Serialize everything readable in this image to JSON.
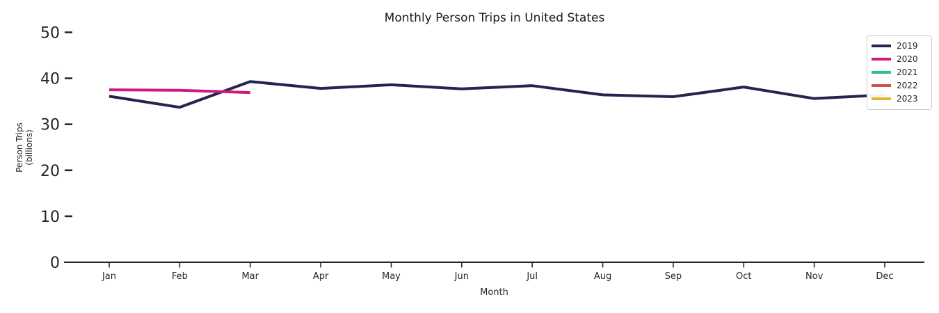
{
  "chart_data": {
    "type": "line",
    "title": "Monthly Person Trips in United States",
    "xlabel": "Month",
    "ylabel_lines": [
      "Person Trips",
      "(billions)"
    ],
    "categories": [
      "Jan",
      "Feb",
      "Mar",
      "Apr",
      "May",
      "Jun",
      "Jul",
      "Aug",
      "Sep",
      "Oct",
      "Nov",
      "Dec"
    ],
    "yticks": [
      0,
      10,
      20,
      30,
      40,
      50
    ],
    "ylim": [
      0,
      52
    ],
    "grid": false,
    "legend_position": "upper right",
    "axis_color": "#262626",
    "series": [
      {
        "name": "2019",
        "color": "#262350",
        "values": [
          36.1,
          33.7,
          39.3,
          37.8,
          38.6,
          37.7,
          38.4,
          36.4,
          36.0,
          38.1,
          35.6,
          36.4
        ]
      },
      {
        "name": "2020",
        "color": "#d0197f",
        "values": [
          37.5,
          37.4,
          36.9
        ]
      },
      {
        "name": "2021",
        "color": "#2ebd8d",
        "values": []
      },
      {
        "name": "2022",
        "color": "#d65149",
        "values": []
      },
      {
        "name": "2023",
        "color": "#e3b825",
        "values": []
      }
    ]
  }
}
